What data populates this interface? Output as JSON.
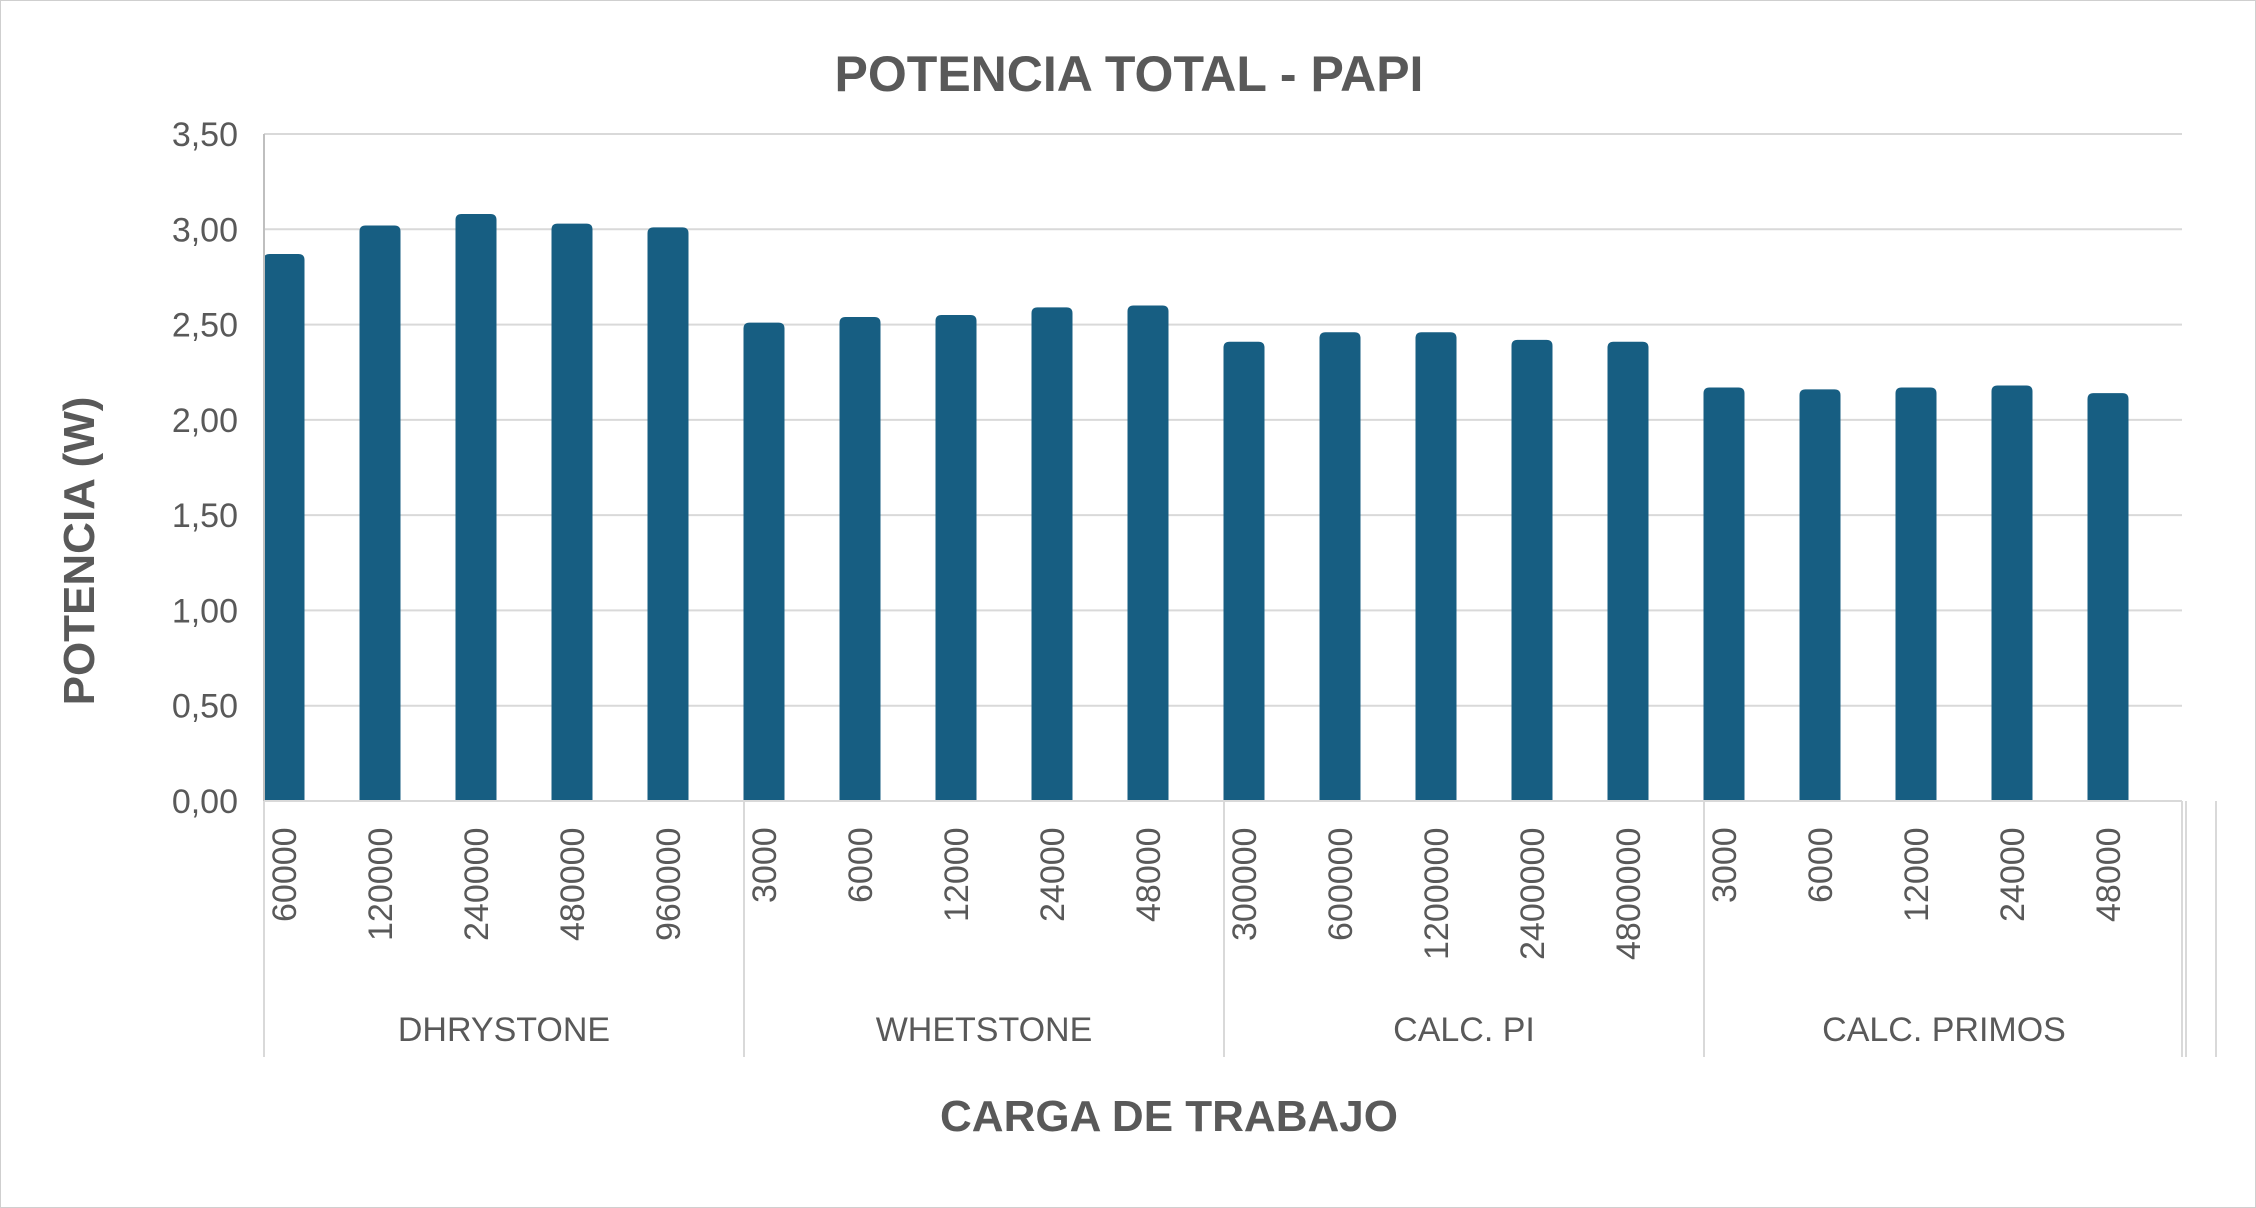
{
  "chart_data": {
    "type": "bar",
    "title": "POTENCIA TOTAL - PAPI",
    "xlabel": "CARGA DE TRABAJO",
    "ylabel": "POTENCIA (W)",
    "ylim": [
      0,
      3.5
    ],
    "y_ticks": [
      "0,00",
      "0,50",
      "1,00",
      "1,50",
      "2,00",
      "2,50",
      "3,00",
      "3,50"
    ],
    "grid": true,
    "legend": "none",
    "bar_color": "#175E82",
    "groups": [
      {
        "name": "DHRYSTONE",
        "categories": [
          "60000",
          "120000",
          "240000",
          "480000",
          "960000"
        ],
        "values": [
          2.87,
          3.02,
          3.08,
          3.03,
          3.01
        ]
      },
      {
        "name": "WHETSTONE",
        "categories": [
          "3000",
          "6000",
          "12000",
          "24000",
          "48000"
        ],
        "values": [
          2.51,
          2.54,
          2.55,
          2.59,
          2.6
        ]
      },
      {
        "name": "CALC. PI",
        "categories": [
          "300000",
          "600000",
          "1200000",
          "2400000",
          "4800000"
        ],
        "values": [
          2.41,
          2.46,
          2.46,
          2.42,
          2.41
        ]
      },
      {
        "name": "CALC. PRIMOS",
        "categories": [
          "3000",
          "6000",
          "12000",
          "24000",
          "48000"
        ],
        "values": [
          2.17,
          2.16,
          2.17,
          2.18,
          2.14
        ]
      }
    ]
  }
}
